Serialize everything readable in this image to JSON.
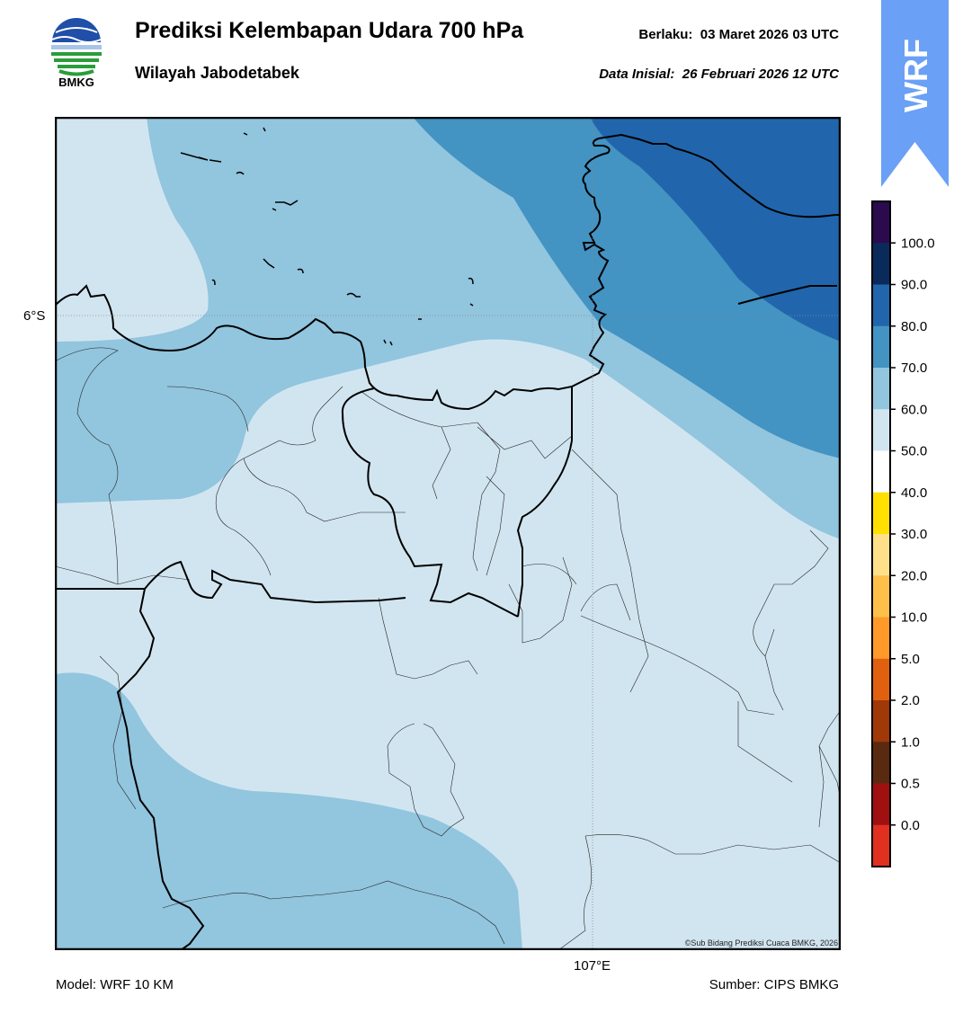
{
  "header": {
    "title": "Prediksi Kelembapan Udara 700 hPa",
    "subtitle": "Wilayah Jabodetabek",
    "valid_label": "Berlaku:",
    "valid_value": "03 Maret 2026 03 UTC",
    "init_label": "Data Inisial:",
    "init_value": "26 Februari 2026 12 UTC"
  },
  "logo": {
    "text": "BMKG",
    "icon": "bmkg-logo"
  },
  "badge": {
    "text": "WRF",
    "color": "#6aa0f5"
  },
  "map": {
    "lat_label": "6°S",
    "lon_label": "107°E",
    "credit": "©Sub Bidang Prediksi Cuaca BMKG, 2026",
    "gridline": "dotted-gray"
  },
  "colorbar": {
    "ticks": [
      "100.0",
      "90.0",
      "80.0",
      "70.0",
      "60.0",
      "50.0",
      "40.0",
      "30.0",
      "20.0",
      "10.0",
      "5.0",
      "2.0",
      "1.0",
      "0.5",
      "0.0"
    ],
    "colors": [
      "#2b0a4d",
      "#0a2a5c",
      "#2166ac",
      "#4393c3",
      "#92c5de",
      "#d1e5f0",
      "#ffffff",
      "#ffe000",
      "#ffe08a",
      "#ffc04a",
      "#ff9a2a",
      "#e06010",
      "#a03808",
      "#5a2a10",
      "#a01010",
      "#e03020"
    ]
  },
  "footer": {
    "model": "Model: WRF 10 KM",
    "source": "Sumber: CIPS BMKG"
  }
}
